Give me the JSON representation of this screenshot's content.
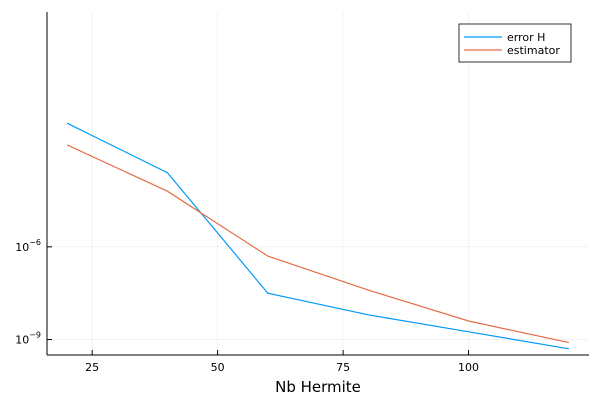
{
  "chart_data": {
    "type": "line",
    "title": "",
    "xlabel": "Nb Hermite",
    "ylabel": "",
    "yscale": "log10",
    "xlim": [
      16,
      124
    ],
    "ylim_exponent": [
      -9.5,
      1.6
    ],
    "grid": true,
    "legend_position": "top-right",
    "x_ticks": [
      25,
      50,
      75,
      100
    ],
    "x_tick_labels": [
      "25",
      "50",
      "75",
      "100"
    ],
    "y_ticks_exponent": [
      -6,
      -9
    ],
    "y_tick_bases": [
      "10",
      "10"
    ],
    "y_tick_exponents": [
      "−6",
      "−9"
    ],
    "x": [
      20,
      40,
      60,
      80,
      100,
      120
    ],
    "series": [
      {
        "name": "error H",
        "color": "#009AFA",
        "values_log10": [
          -2.0,
          -3.6,
          -7.5,
          -8.2,
          -8.75,
          -9.3
        ]
      },
      {
        "name": "estimator",
        "color": "#E36F47",
        "values_log10": [
          -2.7,
          -4.2,
          -6.3,
          -7.4,
          -8.4,
          -9.1
        ]
      }
    ]
  }
}
